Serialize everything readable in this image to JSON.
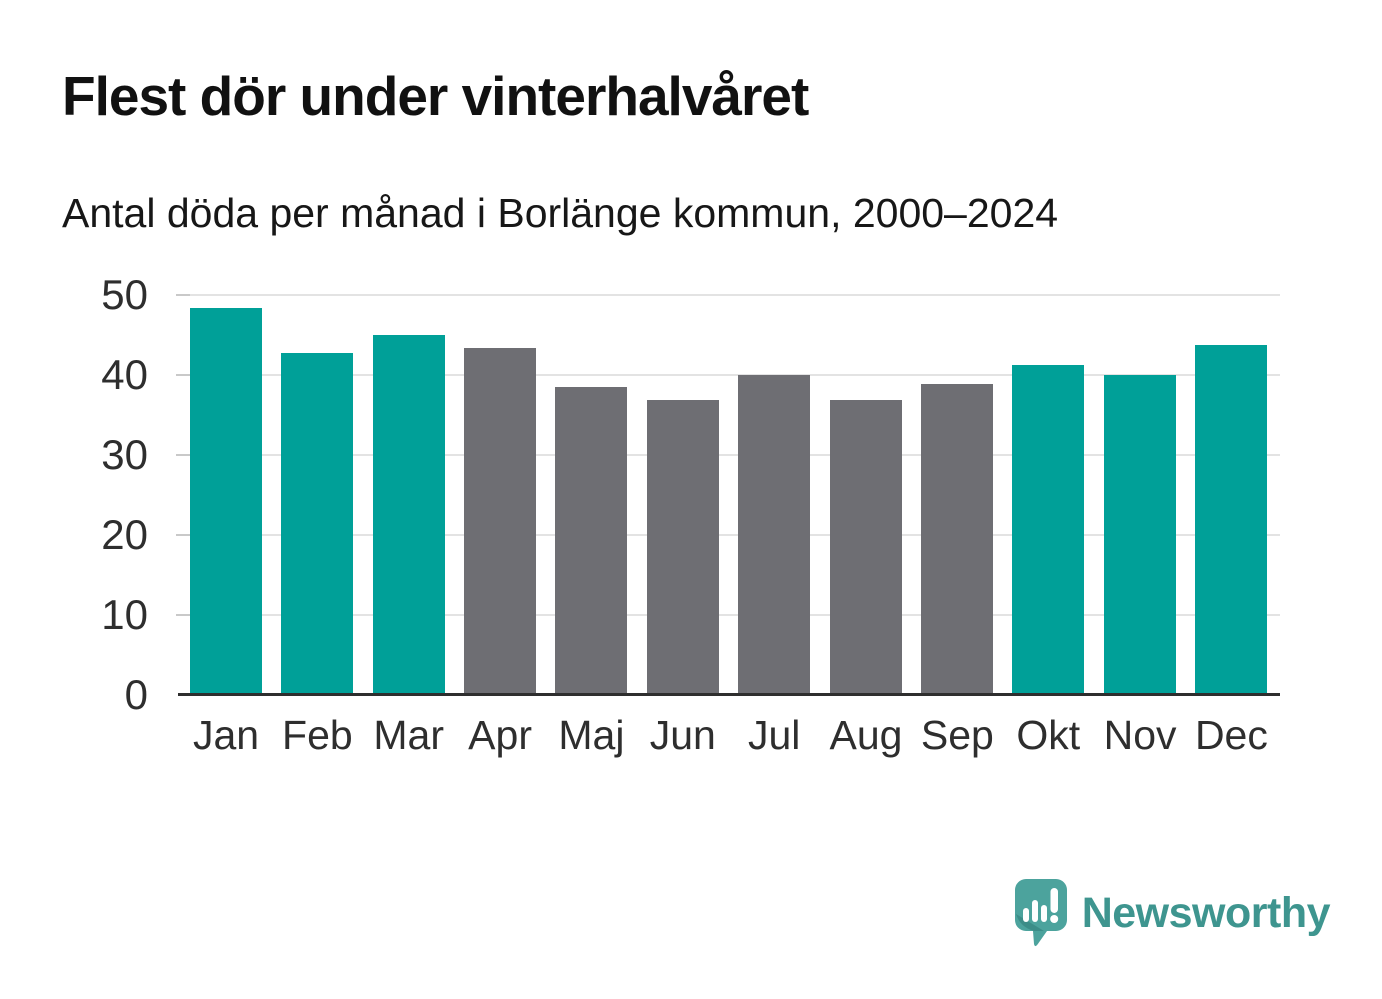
{
  "title": "Flest dör under vinterhalvåret",
  "subtitle": "Antal döda per månad i Borlänge kommun, 2000–2024",
  "brand": {
    "name": "Newsworthy",
    "icon": "speech-bubble-bar-chart-icon",
    "wordmark_color": "#3E958F",
    "icon_color": "#4CA39D",
    "icon_shade_color": "#3A8A85"
  },
  "colors": {
    "winter": "#00A098",
    "summer": "#6E6E73",
    "gridline": "#E3E3E3",
    "axis_line": "#2E2E2E",
    "label_text": "#2E2E2E",
    "title_text": "#111111"
  },
  "chart_data": {
    "type": "bar",
    "title": "Flest dör under vinterhalvåret",
    "subtitle": "Antal döda per månad i Borlänge kommun, 2000–2024",
    "xlabel": "",
    "ylabel": "",
    "categories": [
      "Jan",
      "Feb",
      "Mar",
      "Apr",
      "Maj",
      "Jun",
      "Jul",
      "Aug",
      "Sep",
      "Okt",
      "Nov",
      "Dec"
    ],
    "values": [
      48.2,
      42.6,
      44.9,
      43.2,
      38.4,
      36.7,
      39.9,
      36.8,
      38.7,
      41.1,
      39.9,
      43.6
    ],
    "bar_color_keys": [
      "winter",
      "winter",
      "winter",
      "summer",
      "summer",
      "summer",
      "summer",
      "summer",
      "summer",
      "winter",
      "winter",
      "winter"
    ],
    "ylim": [
      0,
      50
    ],
    "yticks": [
      0,
      10,
      20,
      30,
      40,
      50
    ],
    "grid": true,
    "legend": false
  }
}
